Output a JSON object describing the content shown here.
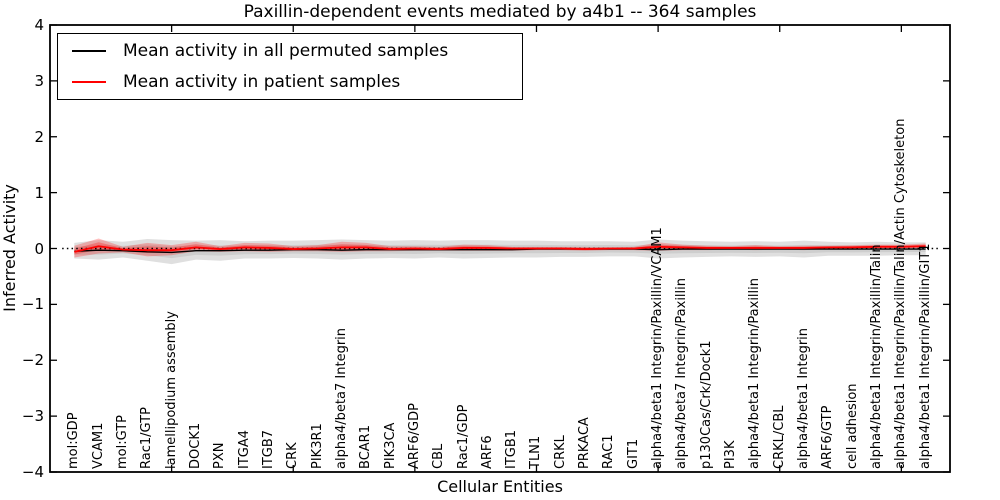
{
  "chart_data": {
    "type": "line",
    "title": "Paxillin-dependent events mediated by a4b1 -- 364 samples",
    "xlabel": "Cellular Entities",
    "ylabel": "Inferred Activity",
    "xlim": [
      0,
      37
    ],
    "ylim": [
      -4,
      4
    ],
    "xticks": [
      5,
      10,
      15,
      20,
      25,
      30,
      35
    ],
    "yticks": [
      -4,
      -3,
      -2,
      -1,
      0,
      1,
      2,
      3,
      4
    ],
    "ytick_labels": [
      "−4",
      "−3",
      "−2",
      "−1",
      "0",
      "1",
      "2",
      "3",
      "4"
    ],
    "grid": false,
    "legend_position": "upper left",
    "zero_line": {
      "y": 0,
      "style": "dotted",
      "color": "#000000"
    },
    "categories": [
      "mol:GDP",
      "VCAM1",
      "mol:GTP",
      "Rac1/GTP",
      "lamellipodium assembly",
      "DOCK1",
      "PXN",
      "ITGA4",
      "ITGB7",
      "CRK",
      "PIK3R1",
      "alpha4/beta7 Integrin",
      "BCAR1",
      "PIK3CA",
      "ARF6/GDP",
      "CBL",
      "Rac1/GDP",
      "ARF6",
      "ITGB1",
      "TLN1",
      "CRKL",
      "PRKACA",
      "RAC1",
      "GIT1",
      "alpha4/beta1 Integrin/Paxillin/VCAM1",
      "alpha4/beta7 Integrin/Paxillin",
      "p130Cas/Crk/Dock1",
      "PI3K",
      "alpha4/beta1 Integrin/Paxillin",
      "CRKL/CBL",
      "alpha4/beta1 Integrin",
      "ARF6/GTP",
      "cell adhesion",
      "alpha4/beta1 Integrin/Paxillin/Talin",
      "alpha4/beta1 Integrin/Paxillin/Talin/Actin Cytoskeleton",
      "alpha4/beta1 Integrin/Paxillin/GIT1"
    ],
    "series": [
      {
        "name": "Mean activity in all permuted samples",
        "color": "#000000",
        "line_width": 1.4,
        "values": [
          -0.05,
          -0.03,
          -0.04,
          -0.06,
          -0.07,
          -0.04,
          -0.04,
          -0.03,
          -0.03,
          -0.02,
          -0.02,
          -0.03,
          -0.02,
          -0.02,
          -0.02,
          -0.02,
          -0.02,
          -0.02,
          -0.02,
          -0.01,
          -0.01,
          -0.01,
          -0.01,
          -0.01,
          -0.02,
          -0.01,
          -0.01,
          -0.01,
          -0.01,
          -0.01,
          -0.01,
          -0.01,
          -0.01,
          -0.01,
          -0.01,
          -0.01
        ]
      },
      {
        "name": "Mean activity in patient samples",
        "color": "#ff0000",
        "line_width": 1.8,
        "values": [
          -0.06,
          0.04,
          -0.02,
          -0.03,
          -0.03,
          0.02,
          -0.01,
          0.02,
          0.01,
          -0.01,
          0.0,
          0.02,
          0.02,
          -0.01,
          0.0,
          -0.01,
          0.01,
          0.01,
          0.0,
          0.0,
          0.0,
          -0.01,
          0.0,
          0.0,
          0.03,
          0.02,
          0.01,
          0.01,
          0.01,
          0.01,
          0.01,
          0.02,
          0.02,
          0.03,
          0.03,
          0.04
        ]
      }
    ],
    "bands": [
      {
        "name": "permuted-samples-band",
        "color": "#8c8c8c",
        "opacity": 0.28,
        "inner_opacity": 0.2,
        "inner_scale": 0.5,
        "upper": [
          0.1,
          0.15,
          0.12,
          0.17,
          0.15,
          0.14,
          0.15,
          0.13,
          0.14,
          0.14,
          0.15,
          0.16,
          0.15,
          0.14,
          0.15,
          0.14,
          0.15,
          0.15,
          0.14,
          0.14,
          0.13,
          0.13,
          0.13,
          0.12,
          0.16,
          0.14,
          0.13,
          0.12,
          0.13,
          0.12,
          0.14,
          0.12,
          0.11,
          0.12,
          0.11,
          0.11
        ],
        "lower": [
          -0.18,
          -0.2,
          -0.16,
          -0.22,
          -0.28,
          -0.2,
          -0.22,
          -0.18,
          -0.18,
          -0.17,
          -0.18,
          -0.2,
          -0.18,
          -0.17,
          -0.18,
          -0.16,
          -0.18,
          -0.17,
          -0.16,
          -0.16,
          -0.15,
          -0.15,
          -0.14,
          -0.14,
          -0.18,
          -0.16,
          -0.15,
          -0.14,
          -0.15,
          -0.14,
          -0.16,
          -0.13,
          -0.13,
          -0.13,
          -0.12,
          -0.12
        ]
      },
      {
        "name": "patient-samples-band",
        "color": "#ff0000",
        "opacity": 0.25,
        "inner_opacity": 0.28,
        "inner_scale": 0.5,
        "upper": [
          0.05,
          0.18,
          0.03,
          0.1,
          0.06,
          0.12,
          0.04,
          0.1,
          0.09,
          0.04,
          0.06,
          0.12,
          0.1,
          0.04,
          0.04,
          0.03,
          0.07,
          0.06,
          0.03,
          0.03,
          0.03,
          0.03,
          0.02,
          0.03,
          0.11,
          0.07,
          0.05,
          0.04,
          0.06,
          0.04,
          0.05,
          0.05,
          0.06,
          0.07,
          0.07,
          0.09
        ],
        "lower": [
          -0.16,
          -0.09,
          -0.07,
          -0.14,
          -0.12,
          -0.05,
          -0.06,
          -0.05,
          -0.06,
          -0.05,
          -0.05,
          -0.06,
          -0.05,
          -0.05,
          -0.04,
          -0.04,
          -0.04,
          -0.04,
          -0.04,
          -0.03,
          -0.03,
          -0.04,
          -0.03,
          -0.03,
          -0.04,
          -0.03,
          -0.03,
          -0.02,
          -0.03,
          -0.02,
          -0.03,
          -0.01,
          -0.01,
          0.0,
          0.0,
          0.01
        ]
      }
    ]
  }
}
